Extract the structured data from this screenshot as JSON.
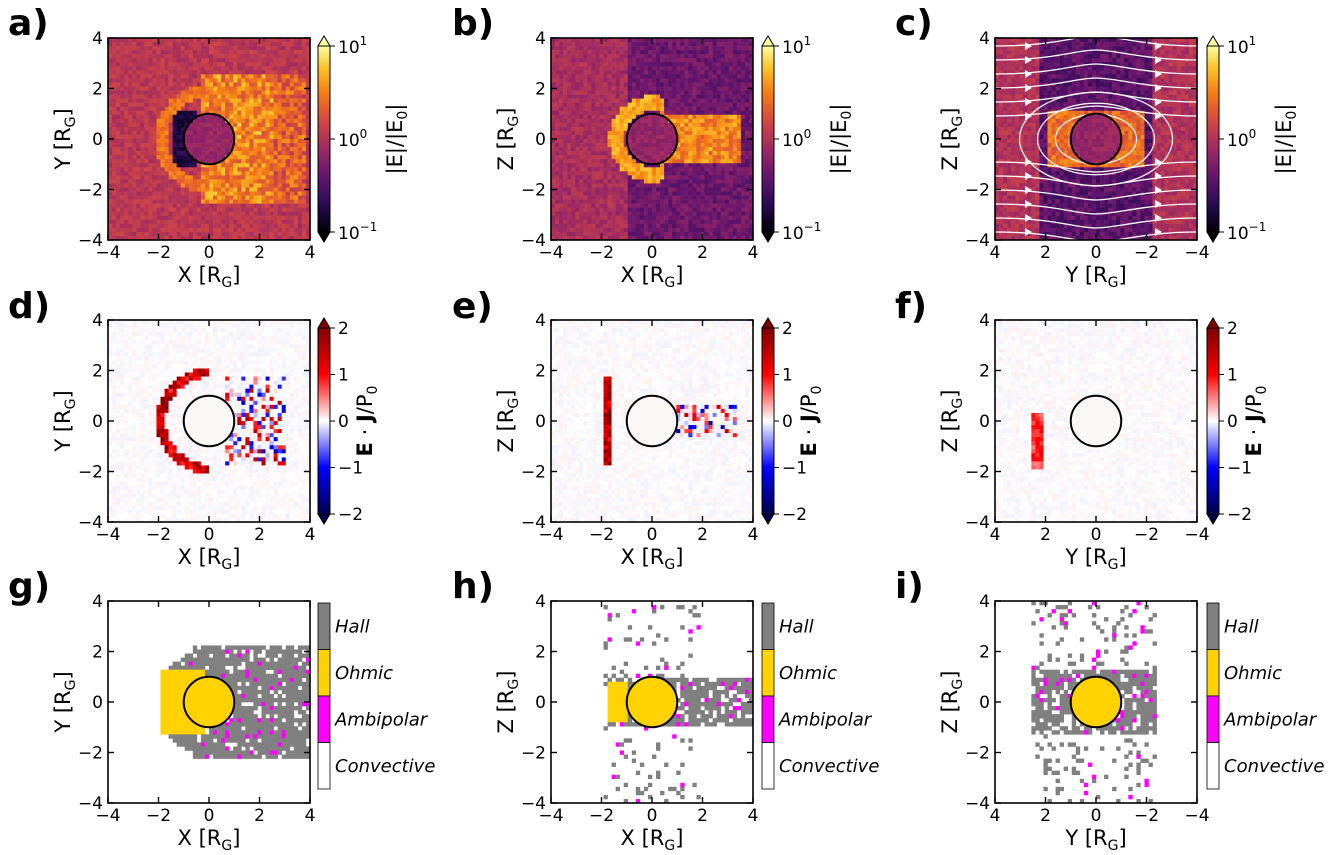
{
  "panel_letters": [
    "a)",
    "b)",
    "c)",
    "d)",
    "e)",
    "f)",
    "g)",
    "h)",
    "i)"
  ],
  "axis_labels": {
    "x": "X [R",
    "y": "Y [R",
    "z": "Z [R",
    "subscript": "G",
    "close": "]"
  },
  "ticks": {
    "x": [
      "−4",
      "−2",
      "0",
      "2",
      "4"
    ],
    "y_rev": [
      "4",
      "2",
      "0",
      "−2",
      "−4"
    ],
    "v": [
      "4",
      "2",
      "0",
      "−2",
      "−4"
    ]
  },
  "colorbars": {
    "field": {
      "label_pre": "|E|/|E",
      "label_sub": "0",
      "label_post": "|",
      "ticks": [
        {
          "base": "10",
          "exp": "1"
        },
        {
          "base": "10",
          "exp": "0"
        },
        {
          "base": "10",
          "exp": "−1"
        }
      ],
      "scale": "log",
      "range": [
        0.1,
        10
      ],
      "extend": "both",
      "colormap": "inferno"
    },
    "work": {
      "label_bold": "E",
      "label_mid": " · ",
      "label_bold2": "J",
      "label_post": "/P",
      "label_sub": "0",
      "ticks": [
        "2",
        "1",
        "0",
        "−1",
        "−2"
      ],
      "range": [
        -2,
        2
      ],
      "extend": "both",
      "colormap": "seismic"
    },
    "regime": {
      "categories": [
        "Hall",
        "Ohmic",
        "Ambipolar",
        "Convective"
      ],
      "colors": [
        "#808080",
        "#ffd200",
        "#ff00ff",
        "#ffffff"
      ]
    }
  },
  "colors": {
    "planet": "#ffd200",
    "hall": "#808080",
    "ohmic": "#ffd200",
    "ambipolar": "#ff00ff",
    "background_field": "#c8473c"
  },
  "chart_data": [
    {
      "panel": "a)",
      "type": "heatmap",
      "quantity": "|E|/|E0|",
      "xlabel": "X [RG]",
      "ylabel": "Y [RG]",
      "xlim": [
        -4,
        4
      ],
      "ylim": [
        -4,
        4
      ],
      "planet_radius": 1,
      "log_scale": true
    },
    {
      "panel": "b)",
      "type": "heatmap",
      "quantity": "|E|/|E0|",
      "xlabel": "X [RG]",
      "ylabel": "Z [RG]",
      "xlim": [
        -4,
        4
      ],
      "ylim": [
        -4,
        4
      ],
      "planet_radius": 1,
      "log_scale": true
    },
    {
      "panel": "c)",
      "type": "heatmap",
      "quantity": "|E|/|E0|",
      "xlabel": "Y [RG]",
      "ylabel": "Z [RG]",
      "xlim": [
        4,
        -4
      ],
      "ylim": [
        -4,
        4
      ],
      "planet_radius": 1,
      "log_scale": true,
      "overlay": "streamlines"
    },
    {
      "panel": "d)",
      "type": "heatmap",
      "quantity": "E·J/P0",
      "xlabel": "X [RG]",
      "ylabel": "Y [RG]",
      "xlim": [
        -4,
        4
      ],
      "ylim": [
        -4,
        4
      ],
      "planet_radius": 1,
      "crange": [
        -2,
        2
      ]
    },
    {
      "panel": "e)",
      "type": "heatmap",
      "quantity": "E·J/P0",
      "xlabel": "X [RG]",
      "ylabel": "Z [RG]",
      "xlim": [
        -4,
        4
      ],
      "ylim": [
        -4,
        4
      ],
      "planet_radius": 1,
      "crange": [
        -2,
        2
      ]
    },
    {
      "panel": "f)",
      "type": "heatmap",
      "quantity": "E·J/P0",
      "xlabel": "Y [RG]",
      "ylabel": "Z [RG]",
      "xlim": [
        4,
        -4
      ],
      "ylim": [
        -4,
        4
      ],
      "planet_radius": 1,
      "crange": [
        -2,
        2
      ]
    },
    {
      "panel": "g)",
      "type": "heatmap",
      "quantity": "regime",
      "xlabel": "X [RG]",
      "ylabel": "Y [RG]",
      "xlim": [
        -4,
        4
      ],
      "ylim": [
        -4,
        4
      ],
      "planet_radius": 1,
      "categories": [
        "Hall",
        "Ohmic",
        "Ambipolar",
        "Convective"
      ]
    },
    {
      "panel": "h)",
      "type": "heatmap",
      "quantity": "regime",
      "xlabel": "X [RG]",
      "ylabel": "Z [RG]",
      "xlim": [
        -4,
        4
      ],
      "ylim": [
        -4,
        4
      ],
      "planet_radius": 1,
      "categories": [
        "Hall",
        "Ohmic",
        "Ambipolar",
        "Convective"
      ]
    },
    {
      "panel": "i)",
      "type": "heatmap",
      "quantity": "regime",
      "xlabel": "Y [RG]",
      "ylabel": "Z [RG]",
      "xlim": [
        4,
        -4
      ],
      "ylim": [
        -4,
        4
      ],
      "planet_radius": 1,
      "categories": [
        "Hall",
        "Ohmic",
        "Ambipolar",
        "Convective"
      ]
    }
  ]
}
